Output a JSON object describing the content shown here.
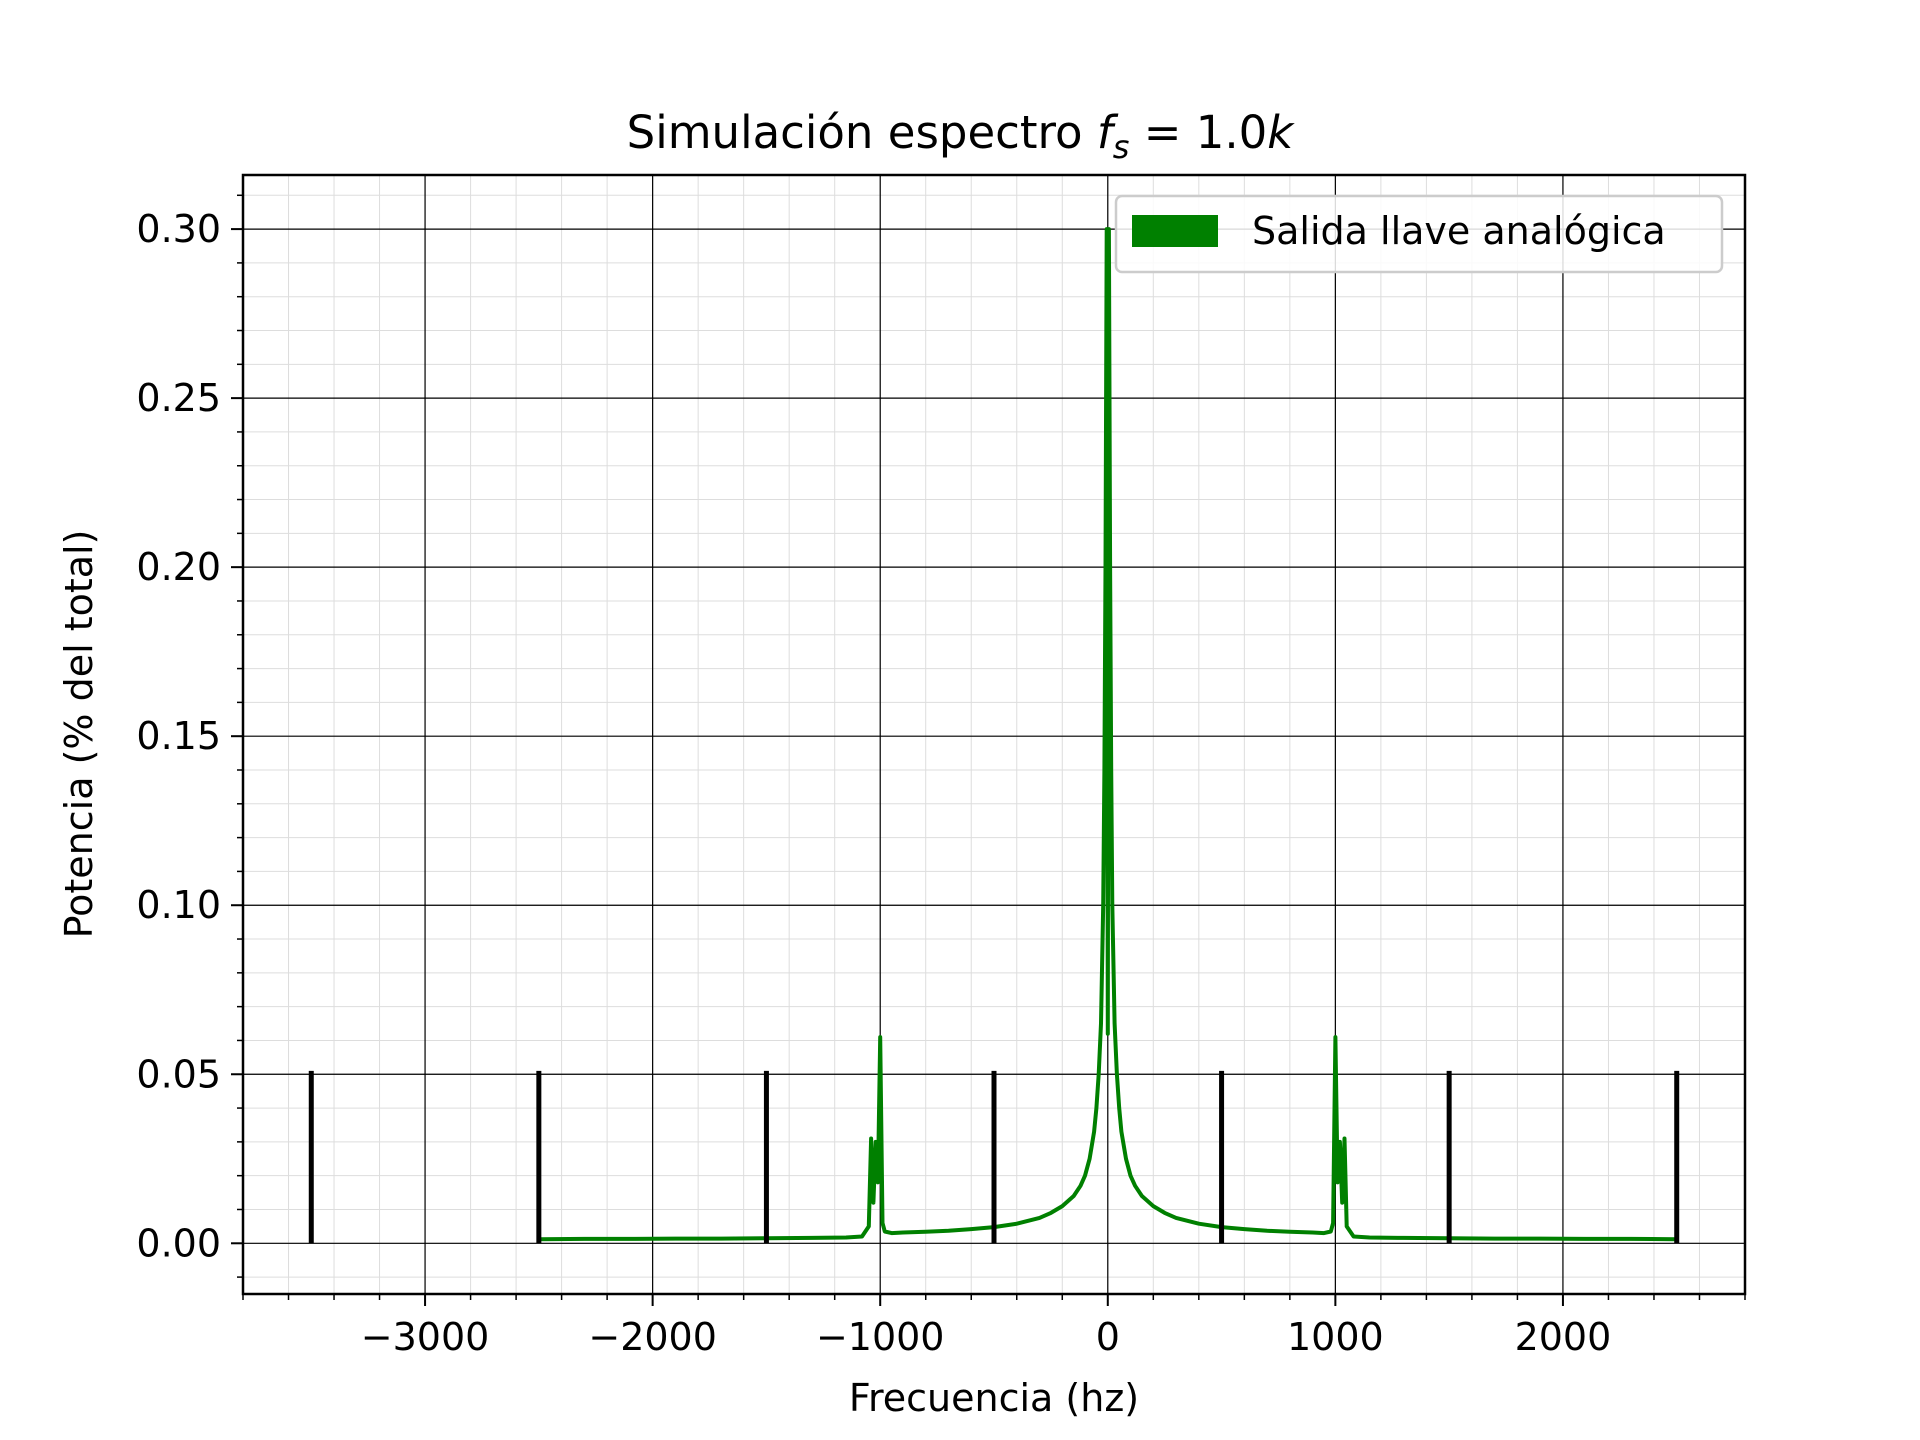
{
  "chart_data": {
    "type": "line",
    "title": "Simulación espectro ",
    "title_math": {
      "base": "f",
      "sub": "s",
      "rest": " = 1.0",
      "unit": "k"
    },
    "xlabel": "Frecuencia (hz)",
    "ylabel": "Potencia (% del total)",
    "xlim": [
      -3800,
      2800
    ],
    "ylim": [
      -0.015,
      0.316
    ],
    "xticks": [
      -3000,
      -2000,
      -1000,
      0,
      1000,
      2000
    ],
    "xtick_labels": [
      "−3000",
      "−2000",
      "−1000",
      "0",
      "1000",
      "2000"
    ],
    "yticks": [
      0.0,
      0.05,
      0.1,
      0.15,
      0.2,
      0.25,
      0.3
    ],
    "ytick_labels": [
      "0.00",
      "0.05",
      "0.10",
      "0.15",
      "0.20",
      "0.25",
      "0.30"
    ],
    "grid": true,
    "minor_grid": true,
    "legend_position": "top-right",
    "series": [
      {
        "name": "Salida llave analógica",
        "color": "#008000",
        "x": [
          -2500,
          -2300,
          -2100,
          -1900,
          -1700,
          -1500,
          -1300,
          -1150,
          -1080,
          -1050,
          -1040,
          -1030,
          -1020,
          -1010,
          -1000,
          -990,
          -980,
          -950,
          -900,
          -800,
          -700,
          -600,
          -500,
          -400,
          -300,
          -250,
          -200,
          -150,
          -120,
          -100,
          -80,
          -60,
          -50,
          -40,
          -30,
          -20,
          -15,
          -10,
          -5,
          0,
          5,
          10,
          15,
          20,
          30,
          40,
          50,
          60,
          80,
          100,
          120,
          150,
          200,
          250,
          300,
          400,
          500,
          600,
          700,
          800,
          900,
          950,
          980,
          990,
          1000,
          1010,
          1020,
          1030,
          1040,
          1050,
          1080,
          1150,
          1300,
          1500,
          1700,
          1900,
          2100,
          2300,
          2500
        ],
        "y": [
          0.0012,
          0.0013,
          0.0013,
          0.0014,
          0.0014,
          0.0015,
          0.0016,
          0.0017,
          0.002,
          0.005,
          0.031,
          0.012,
          0.03,
          0.018,
          0.061,
          0.006,
          0.0035,
          0.003,
          0.0032,
          0.0034,
          0.0037,
          0.0042,
          0.0048,
          0.0058,
          0.0075,
          0.009,
          0.011,
          0.014,
          0.017,
          0.02,
          0.025,
          0.033,
          0.04,
          0.05,
          0.065,
          0.1,
          0.14,
          0.2,
          0.3,
          0.062,
          0.3,
          0.2,
          0.14,
          0.1,
          0.065,
          0.05,
          0.04,
          0.033,
          0.025,
          0.02,
          0.017,
          0.014,
          0.011,
          0.009,
          0.0075,
          0.0058,
          0.0048,
          0.0042,
          0.0037,
          0.0034,
          0.0032,
          0.003,
          0.0035,
          0.006,
          0.061,
          0.018,
          0.03,
          0.012,
          0.031,
          0.005,
          0.002,
          0.0017,
          0.0016,
          0.0015,
          0.0014,
          0.0014,
          0.0013,
          0.0013,
          0.0012
        ]
      }
    ],
    "stems": {
      "x": [
        -3500,
        -2500,
        -1500,
        -500,
        500,
        1500,
        2500
      ],
      "y": [
        0.051,
        0.051,
        0.051,
        0.051,
        0.051,
        0.051,
        0.051
      ],
      "color": "#000000"
    }
  }
}
